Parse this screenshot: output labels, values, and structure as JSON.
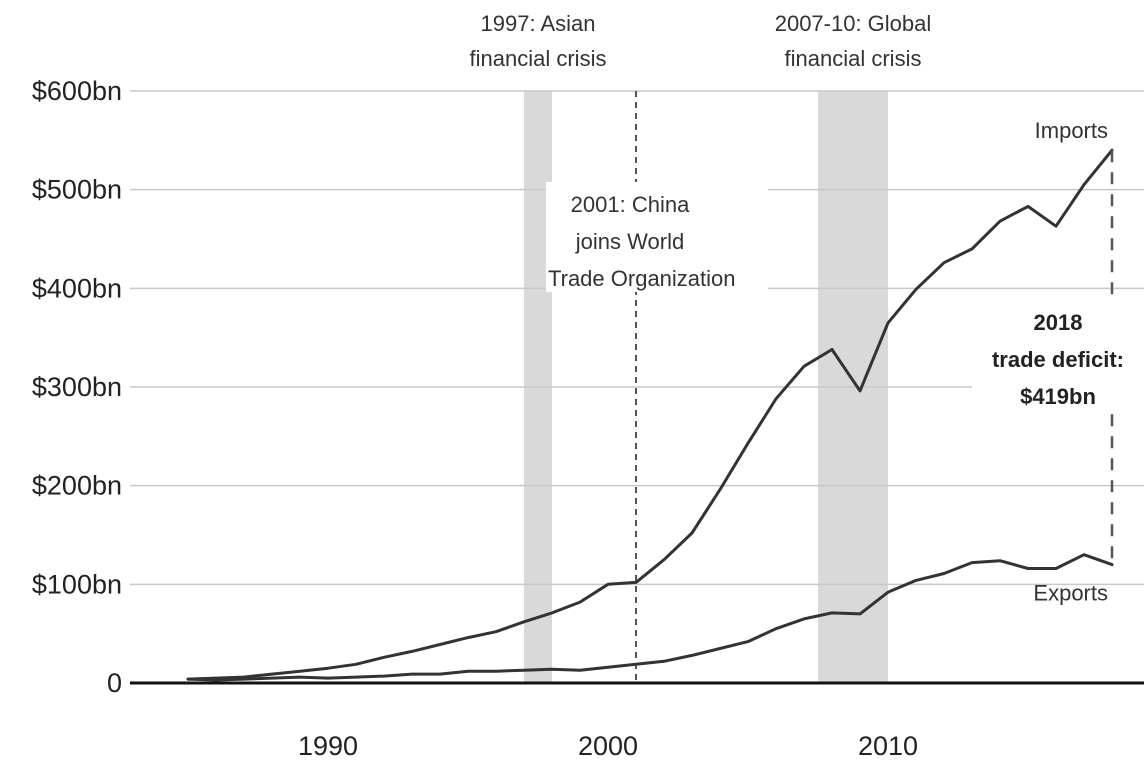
{
  "chart_data": {
    "type": "line",
    "ylim": [
      0,
      600
    ],
    "xlim": [
      1983,
      2019
    ],
    "y_ticks": [
      {
        "value": 0,
        "label": "0"
      },
      {
        "value": 100,
        "label": "$100bn"
      },
      {
        "value": 200,
        "label": "$200bn"
      },
      {
        "value": 300,
        "label": "$300bn"
      },
      {
        "value": 400,
        "label": "$400bn"
      },
      {
        "value": 500,
        "label": "$500bn"
      },
      {
        "value": 600,
        "label": "$600bn"
      }
    ],
    "x_ticks": [
      {
        "value": 1990,
        "label": "1990"
      },
      {
        "value": 2000,
        "label": "2000"
      },
      {
        "value": 2010,
        "label": "2010"
      }
    ],
    "grid": true,
    "series": [
      {
        "name": "Imports",
        "color": "#333333",
        "x": [
          1985,
          1986,
          1987,
          1988,
          1989,
          1990,
          1991,
          1992,
          1993,
          1994,
          1995,
          1996,
          1997,
          1998,
          1999,
          2000,
          2001,
          2002,
          2003,
          2004,
          2005,
          2006,
          2007,
          2008,
          2009,
          2010,
          2011,
          2012,
          2013,
          2014,
          2015,
          2016,
          2017,
          2018
        ],
        "values": [
          4,
          5,
          6,
          9,
          12,
          15,
          19,
          26,
          32,
          39,
          46,
          52,
          62,
          71,
          82,
          100,
          102,
          125,
          152,
          196,
          243,
          288,
          321,
          338,
          296,
          365,
          399,
          426,
          440,
          468,
          483,
          463,
          505,
          540
        ]
      },
      {
        "name": "Exports",
        "color": "#333333",
        "x": [
          1985,
          1986,
          1987,
          1988,
          1989,
          1990,
          1991,
          1992,
          1993,
          1994,
          1995,
          1996,
          1997,
          1998,
          1999,
          2000,
          2001,
          2002,
          2003,
          2004,
          2005,
          2006,
          2007,
          2008,
          2009,
          2010,
          2011,
          2012,
          2013,
          2014,
          2015,
          2016,
          2017,
          2018
        ],
        "values": [
          4,
          3,
          4,
          5,
          6,
          5,
          6,
          7,
          9,
          9,
          12,
          12,
          13,
          14,
          13,
          16,
          19,
          22,
          28,
          35,
          42,
          55,
          65,
          71,
          70,
          92,
          104,
          111,
          122,
          124,
          116,
          116,
          130,
          120
        ]
      }
    ],
    "shaded_periods": [
      {
        "start": 1997,
        "end": 1998,
        "label_lines": [
          "1997: Asian",
          "financial crisis"
        ]
      },
      {
        "start": 2007.5,
        "end": 2010,
        "label_lines": [
          "2007-10: Global",
          "financial crisis"
        ]
      }
    ],
    "event_lines": [
      {
        "x": 2001,
        "label_lines": [
          "2001: China",
          "joins World",
          "Trade Organization"
        ]
      }
    ],
    "deficit_annotation": {
      "x": 2018,
      "year": 2018,
      "label_lines": [
        "2018",
        "trade deficit:",
        "$419bn"
      ]
    },
    "series_labels": {
      "imports": "Imports",
      "exports": "Exports"
    }
  }
}
